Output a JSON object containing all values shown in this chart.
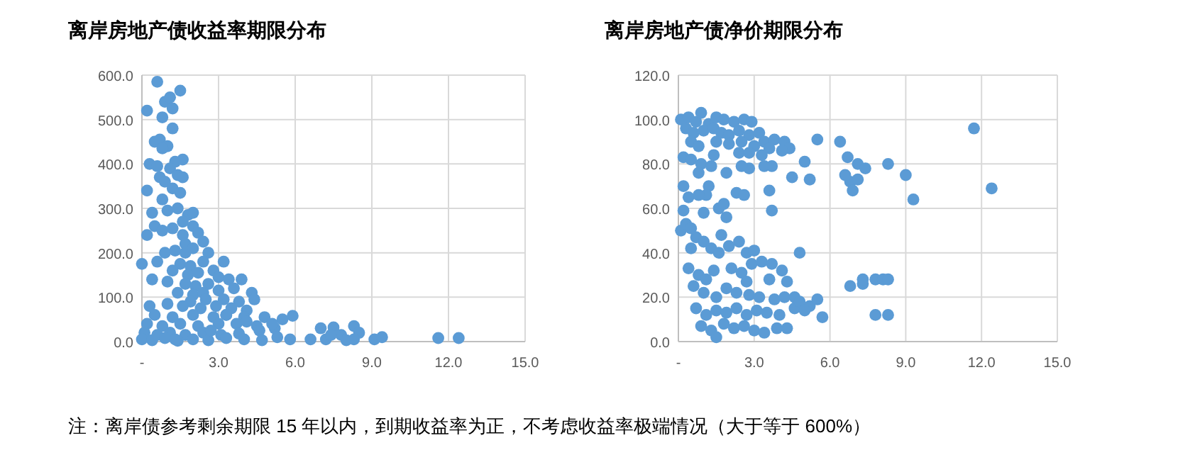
{
  "chart_data": [
    {
      "type": "scatter",
      "title": "离岸房地产债收益率期限分布",
      "marker": "circle",
      "grid": true,
      "xlim": [
        0,
        15
      ],
      "xticks": [
        {
          "value": 0,
          "label": "-"
        },
        {
          "value": 3,
          "label": "3.0"
        },
        {
          "value": 6,
          "label": "6.0"
        },
        {
          "value": 9,
          "label": "9.0"
        },
        {
          "value": 12,
          "label": "12.0"
        },
        {
          "value": 15,
          "label": "15.0"
        }
      ],
      "ylim": [
        0,
        600
      ],
      "yticks": [
        {
          "value": 0,
          "label": "0.0"
        },
        {
          "value": 100,
          "label": "100.0"
        },
        {
          "value": 200,
          "label": "200.0"
        },
        {
          "value": 300,
          "label": "300.0"
        },
        {
          "value": 400,
          "label": "400.0"
        },
        {
          "value": 500,
          "label": "500.0"
        },
        {
          "value": 600,
          "label": "600.0"
        }
      ],
      "series": [
        {
          "color": "#5b9bd5",
          "x": [
            0.2,
            0.6,
            1.5,
            0.9,
            1.1,
            1.2,
            0.8,
            1.2,
            0.5,
            0.7,
            1.0,
            0.8,
            0.3,
            0.6,
            1.3,
            1.6,
            1.1,
            0.7,
            0.9,
            1.4,
            1.6,
            0.2,
            0.8,
            1.2,
            1.5,
            0.4,
            1.0,
            1.4,
            1.8,
            2.0,
            1.6,
            0.5,
            0.8,
            1.2,
            2.0,
            0.2,
            1.6,
            2.2,
            1.7,
            2.4,
            0.9,
            1.3,
            1.7,
            2.0,
            2.6,
            0.0,
            0.6,
            1.5,
            1.9,
            2.4,
            3.2,
            1.2,
            1.8,
            2.2,
            2.8,
            0.4,
            1.0,
            1.7,
            2.1,
            2.6,
            3.0,
            3.4,
            3.9,
            1.4,
            2.0,
            2.4,
            3.0,
            3.6,
            4.3,
            1.9,
            2.5,
            3.2,
            3.8,
            4.4,
            0.3,
            1.0,
            1.6,
            2.3,
            2.9,
            3.5,
            4.1,
            0.5,
            1.2,
            2.0,
            2.8,
            3.3,
            4.0,
            4.8,
            5.5,
            5.9,
            0.2,
            0.8,
            1.5,
            2.2,
            3.0,
            3.7,
            4.5,
            5.2,
            0.1,
            0.6,
            1.1,
            1.7,
            2.4,
            3.1,
            3.8,
            4.6,
            0.0,
            0.4,
            0.9,
            1.4,
            2.0,
            2.6,
            3.3,
            4.0,
            4.7,
            5.3,
            5.8,
            6.6,
            7.0,
            7.2,
            7.5,
            7.8,
            8.0,
            8.3,
            8.5,
            9.1,
            9.4,
            11.6,
            12.4,
            8.3,
            7.4,
            5.1,
            4.1,
            3.3,
            2.7,
            1.3
          ],
          "values": [
            520,
            585,
            565,
            540,
            550,
            525,
            505,
            480,
            450,
            455,
            440,
            435,
            400,
            395,
            405,
            410,
            390,
            370,
            360,
            375,
            370,
            340,
            320,
            345,
            335,
            290,
            295,
            300,
            285,
            290,
            270,
            260,
            250,
            255,
            260,
            240,
            240,
            245,
            220,
            225,
            200,
            205,
            200,
            210,
            200,
            175,
            180,
            175,
            170,
            180,
            180,
            160,
            150,
            155,
            160,
            140,
            135,
            130,
            125,
            130,
            145,
            140,
            140,
            110,
            105,
            110,
            115,
            120,
            110,
            90,
            95,
            95,
            90,
            95,
            80,
            85,
            80,
            75,
            80,
            75,
            70,
            60,
            55,
            60,
            55,
            60,
            55,
            55,
            50,
            58,
            40,
            35,
            40,
            35,
            40,
            40,
            35,
            30,
            20,
            15,
            20,
            15,
            20,
            15,
            18,
            25,
            5,
            3,
            8,
            2,
            5,
            3,
            8,
            5,
            3,
            10,
            5,
            5,
            30,
            5,
            32,
            15,
            3,
            35,
            20,
            5,
            10,
            8,
            8,
            5,
            15,
            40,
            45,
            60,
            25,
            5
          ]
        }
      ],
      "annotations": [
        "注：离岸债参考剩余期限 15 年以内，到期收益率为正，不考虑收益率极端情况（大于等于 600%）"
      ]
    },
    {
      "type": "scatter",
      "title": "离岸房地产债净价期限分布",
      "marker": "circle",
      "grid": true,
      "xlim": [
        0,
        15
      ],
      "xticks": [
        {
          "value": 0,
          "label": "-"
        },
        {
          "value": 3,
          "label": "3.0"
        },
        {
          "value": 6,
          "label": "6.0"
        },
        {
          "value": 9,
          "label": "9.0"
        },
        {
          "value": 12,
          "label": "12.0"
        },
        {
          "value": 15,
          "label": "15.0"
        }
      ],
      "ylim": [
        0,
        120
      ],
      "yticks": [
        {
          "value": 0,
          "label": "0.0"
        },
        {
          "value": 20,
          "label": "20.0"
        },
        {
          "value": 40,
          "label": "40.0"
        },
        {
          "value": 60,
          "label": "60.0"
        },
        {
          "value": 80,
          "label": "80.0"
        },
        {
          "value": 100,
          "label": "100.0"
        },
        {
          "value": 120,
          "label": "120.0"
        }
      ],
      "series": [
        {
          "color": "#5b9bd5",
          "x": [
            0.1,
            0.4,
            0.7,
            0.9,
            1.2,
            1.5,
            1.8,
            2.2,
            2.6,
            2.9,
            0.3,
            0.6,
            1.0,
            1.4,
            1.7,
            2.0,
            2.4,
            2.8,
            3.2,
            0.5,
            0.8,
            1.5,
            2.0,
            2.5,
            3.0,
            3.4,
            3.8,
            4.2,
            4.4,
            5.5,
            6.4,
            3.6,
            2.4,
            1.4,
            0.2,
            0.5,
            2.8,
            3.3,
            4.1,
            5.0,
            6.7,
            7.1,
            7.4,
            8.3,
            9.0,
            11.7,
            12.4,
            9.3,
            6.8,
            7.1,
            6.9,
            6.6,
            0.9,
            1.3,
            0.8,
            2.8,
            2.5,
            3.4,
            3.7,
            4.5,
            5.2,
            1.9,
            0.2,
            1.2,
            1.1,
            0.4,
            0.8,
            2.3,
            2.6,
            3.6,
            0.2,
            1.0,
            1.6,
            1.9,
            1.8,
            3.7,
            0.1,
            0.3,
            0.5,
            0.7,
            1.0,
            1.3,
            1.7,
            2.0,
            2.4,
            2.7,
            3.0,
            4.8,
            1.6,
            0.5,
            0.4,
            0.8,
            1.1,
            1.4,
            2.1,
            2.5,
            2.9,
            3.3,
            3.7,
            4.1,
            4.3,
            3.6,
            2.7,
            0.6,
            1.0,
            1.5,
            1.9,
            2.3,
            2.8,
            3.2,
            3.8,
            4.2,
            4.6,
            0.7,
            1.1,
            1.5,
            1.9,
            2.3,
            2.7,
            3.1,
            3.5,
            4.0,
            4.6,
            5.2,
            5.5,
            5.7,
            0.9,
            1.3,
            1.5,
            1.8,
            2.2,
            2.6,
            3.0,
            3.4,
            3.9,
            4.3,
            6.8,
            7.3,
            7.3,
            7.8,
            8.1,
            8.3,
            7.8,
            8.3,
            4.8,
            5.0
          ],
          "values": [
            100,
            101,
            99,
            103,
            98,
            101,
            100,
            99,
            100,
            99,
            96,
            94,
            95,
            96,
            94,
            93,
            95,
            93,
            94,
            90,
            88,
            90,
            89,
            90,
            88,
            90,
            91,
            90,
            87,
            91,
            90,
            87,
            85,
            84,
            83,
            82,
            85,
            84,
            86,
            81,
            83,
            80,
            78,
            80,
            75,
            96,
            69,
            64,
            72,
            73,
            68,
            75,
            80,
            79,
            76,
            78,
            79,
            79,
            79,
            74,
            73,
            76,
            70,
            70,
            66,
            65,
            66,
            67,
            66,
            68,
            59,
            58,
            60,
            56,
            62,
            59,
            50,
            53,
            51,
            47,
            45,
            42,
            48,
            43,
            45,
            40,
            41,
            40,
            40,
            42,
            33,
            30,
            28,
            32,
            33,
            31,
            35,
            36,
            35,
            32,
            27,
            28,
            27,
            25,
            22,
            20,
            24,
            22,
            21,
            20,
            19,
            20,
            20,
            15,
            12,
            14,
            13,
            15,
            12,
            14,
            13,
            12,
            15,
            16,
            19,
            11,
            7,
            5,
            2,
            8,
            6,
            7,
            5,
            4,
            6,
            6,
            25,
            26,
            28,
            28,
            28,
            28,
            12,
            12,
            18,
            14
          ]
        }
      ]
    }
  ]
}
